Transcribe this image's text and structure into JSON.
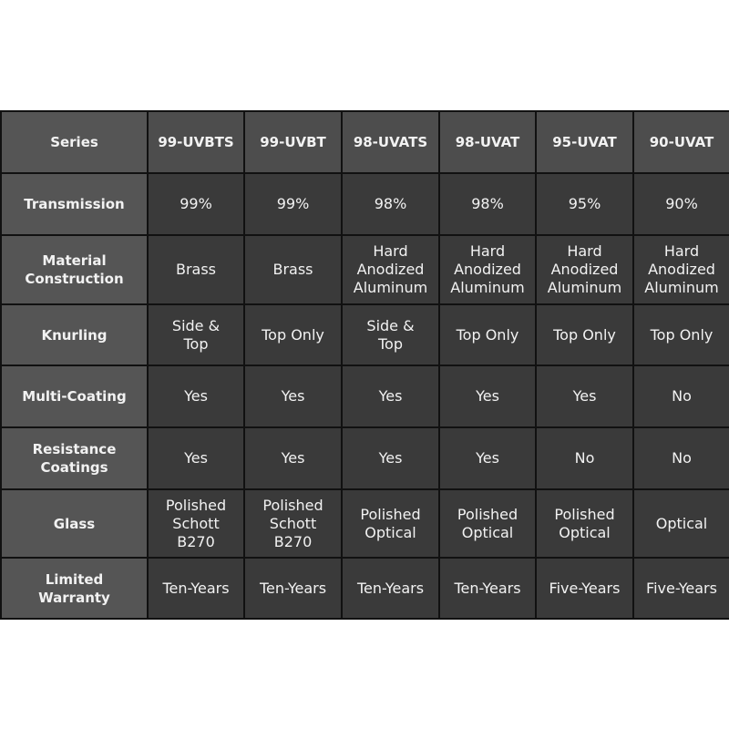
{
  "header": {
    "label": "Series",
    "columns": [
      "99-UVBTS",
      "99-UVBT",
      "98-UVATS",
      "98-UVAT",
      "95-UVAT",
      "90-UVAT"
    ]
  },
  "rows": [
    {
      "label": "Transmission",
      "values": [
        "99%",
        "99%",
        "98%",
        "98%",
        "95%",
        "90%"
      ]
    },
    {
      "label": "Material Construction",
      "values": [
        "Brass",
        "Brass",
        "Hard Anodized Aluminum",
        "Hard Anodized Aluminum",
        "Hard Anodized Aluminum",
        "Hard Anodized Aluminum"
      ]
    },
    {
      "label": "Knurling",
      "values": [
        "Side & Top",
        "Top Only",
        "Side & Top",
        "Top Only",
        "Top Only",
        "Top Only"
      ]
    },
    {
      "label": "Multi-Coating",
      "values": [
        "Yes",
        "Yes",
        "Yes",
        "Yes",
        "Yes",
        "No"
      ]
    },
    {
      "label": "Resistance Coatings",
      "values": [
        "Yes",
        "Yes",
        "Yes",
        "Yes",
        "No",
        "No"
      ]
    },
    {
      "label": "Glass",
      "values": [
        "Polished Schott B270",
        "Polished Schott B270",
        "Polished Optical",
        "Polished Optical",
        "Polished Optical",
        "Optical"
      ]
    },
    {
      "label": "Limited Warranty",
      "values": [
        "Ten-Years",
        "Ten-Years",
        "Ten-Years",
        "Ten-Years",
        "Five-Years",
        "Five-Years"
      ]
    }
  ]
}
